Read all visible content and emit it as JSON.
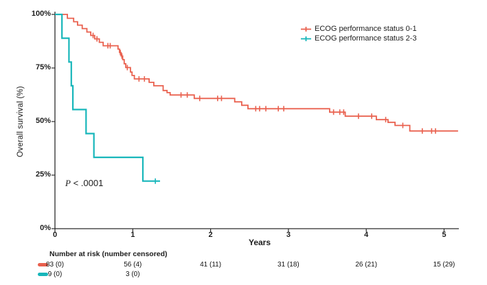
{
  "figure": {
    "y_axis": {
      "title": "Overall survival (%)",
      "tick_labels": [
        "100%",
        "75%",
        "50%",
        "25%",
        "0%"
      ],
      "tick_percents": [
        100,
        75,
        50,
        25,
        0
      ]
    },
    "x_axis": {
      "title": "Years",
      "tick_labels": [
        "0",
        "1",
        "2",
        "3",
        "4",
        "5"
      ],
      "tick_years": [
        0,
        1,
        2,
        3,
        4,
        5
      ]
    },
    "legend": {
      "items": [
        {
          "label": "ECOG performance status 0-1",
          "color": "#E9604E"
        },
        {
          "label": "ECOG performance status 2-3",
          "color": "#17B6BA"
        }
      ]
    },
    "pvalue": {
      "symbol": "P",
      "comparison": " < .0001"
    },
    "risk_table": {
      "header": "Number at risk (number censored)",
      "rows": [
        {
          "group": "ECOG performance status 0-1",
          "color": "#E9604E",
          "values": [
            "83 (0)",
            "56 (4)",
            "41 (11)",
            "31 (18)",
            "26 (21)",
            "15 (29)"
          ],
          "years": [
            0,
            1,
            2,
            3,
            4,
            5
          ]
        },
        {
          "group": "ECOG performance status 2-3",
          "color": "#17B6BA",
          "values": [
            "9 (0)",
            "3 (0)"
          ],
          "years": [
            0,
            1
          ]
        }
      ]
    }
  },
  "chart_data": {
    "type": "line",
    "subtype": "kaplan-meier-step",
    "title": "",
    "xlabel": "Years",
    "ylabel": "Overall survival (%)",
    "xlim": [
      0,
      5.3
    ],
    "ylim": [
      0,
      100
    ],
    "x_ticks": [
      0,
      1,
      2,
      3,
      4,
      5
    ],
    "y_ticks_percent": [
      0,
      25,
      50,
      75,
      100
    ],
    "grid": false,
    "legend_position": "top-right",
    "pvalue_annotation": "P < .0001",
    "series": [
      {
        "name": "ECOG performance status 0-1",
        "color": "#E9604E",
        "stroke_width": 1.8,
        "steps": [
          [
            0,
            100
          ],
          [
            0.16,
            98.2
          ],
          [
            0.24,
            96.6
          ],
          [
            0.29,
            95.0
          ],
          [
            0.35,
            93.4
          ],
          [
            0.41,
            91.8
          ],
          [
            0.46,
            90.2
          ],
          [
            0.51,
            88.6
          ],
          [
            0.57,
            87.0
          ],
          [
            0.62,
            85.4
          ],
          [
            0.81,
            83.8
          ],
          [
            0.83,
            82.2
          ],
          [
            0.85,
            80.6
          ],
          [
            0.87,
            78.9
          ],
          [
            0.89,
            77.0
          ],
          [
            0.91,
            75.2
          ],
          [
            0.97,
            73.1
          ],
          [
            0.99,
            71.5
          ],
          [
            1.02,
            69.9
          ],
          [
            1.21,
            68.3
          ],
          [
            1.27,
            66.7
          ],
          [
            1.39,
            64.5
          ],
          [
            1.44,
            63.5
          ],
          [
            1.48,
            62.4
          ],
          [
            1.79,
            60.8
          ],
          [
            2.31,
            59.2
          ],
          [
            2.4,
            57.6
          ],
          [
            2.48,
            56.0
          ],
          [
            3.53,
            54.4
          ],
          [
            3.73,
            52.5
          ],
          [
            4.13,
            50.9
          ],
          [
            4.28,
            49.6
          ],
          [
            4.37,
            48.2
          ],
          [
            4.56,
            45.6
          ]
        ],
        "end_time": 5.18,
        "censor_marks": [
          [
            0.49,
            90.2
          ],
          [
            0.54,
            88.6
          ],
          [
            0.68,
            85.4
          ],
          [
            0.71,
            85.4
          ],
          [
            0.84,
            82.2
          ],
          [
            0.86,
            80.6
          ],
          [
            0.93,
            75.2
          ],
          [
            1.08,
            69.9
          ],
          [
            1.15,
            69.9
          ],
          [
            1.62,
            62.4
          ],
          [
            1.7,
            62.4
          ],
          [
            1.86,
            60.8
          ],
          [
            2.09,
            60.8
          ],
          [
            2.14,
            60.8
          ],
          [
            2.58,
            56.0
          ],
          [
            2.63,
            56.0
          ],
          [
            2.71,
            56.0
          ],
          [
            2.87,
            56.0
          ],
          [
            2.94,
            56.0
          ],
          [
            3.58,
            54.4
          ],
          [
            3.66,
            54.4
          ],
          [
            3.71,
            54.4
          ],
          [
            3.9,
            52.5
          ],
          [
            4.07,
            52.5
          ],
          [
            4.25,
            50.9
          ],
          [
            4.47,
            48.2
          ],
          [
            4.72,
            45.6
          ],
          [
            4.84,
            45.6
          ],
          [
            4.89,
            45.6
          ]
        ]
      },
      {
        "name": "ECOG performance status 2-3",
        "color": "#17B6BA",
        "stroke_width": 2.2,
        "steps": [
          [
            0,
            100
          ],
          [
            0.09,
            88.9
          ],
          [
            0.18,
            77.8
          ],
          [
            0.21,
            66.7
          ],
          [
            0.23,
            55.6
          ],
          [
            0.4,
            44.4
          ],
          [
            0.5,
            33.3
          ],
          [
            1.13,
            22.2
          ]
        ],
        "end_time": 1.35,
        "censor_marks": [
          [
            1.29,
            22.2
          ]
        ]
      }
    ]
  }
}
